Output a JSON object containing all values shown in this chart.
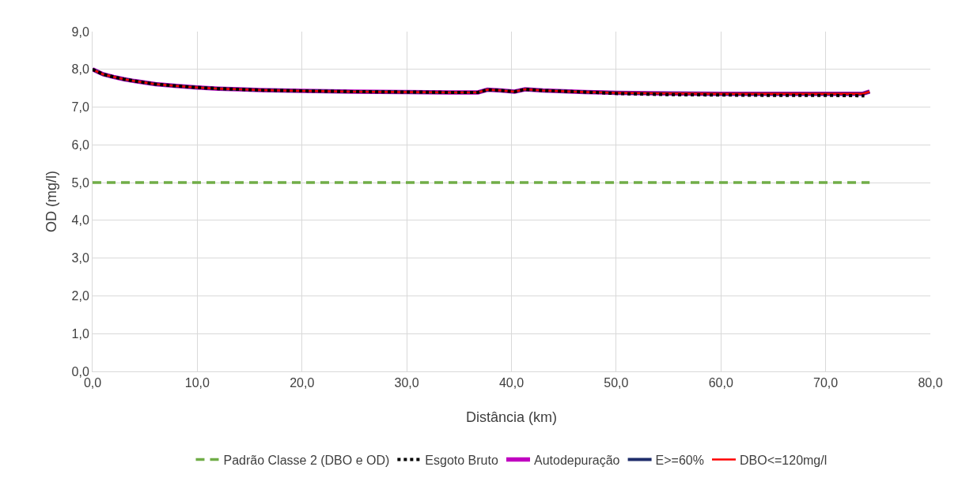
{
  "chart_data": {
    "type": "line",
    "xlabel": "Distância (km)",
    "ylabel": "OD (mg/l)",
    "xlim": [
      0,
      80
    ],
    "ylim": [
      0,
      9
    ],
    "xticks": [
      {
        "value": 0,
        "label": "0,0"
      },
      {
        "value": 10,
        "label": "10,0"
      },
      {
        "value": 20,
        "label": "20,0"
      },
      {
        "value": 30,
        "label": "30,0"
      },
      {
        "value": 40,
        "label": "40,0"
      },
      {
        "value": 50,
        "label": "50,0"
      },
      {
        "value": 60,
        "label": "60,0"
      },
      {
        "value": 70,
        "label": "70,0"
      },
      {
        "value": 80,
        "label": "80,0"
      }
    ],
    "yticks": [
      {
        "value": 0,
        "label": "0,0"
      },
      {
        "value": 1,
        "label": "1,0"
      },
      {
        "value": 2,
        "label": "2,0"
      },
      {
        "value": 3,
        "label": "3,0"
      },
      {
        "value": 4,
        "label": "4,0"
      },
      {
        "value": 5,
        "label": "5,0"
      },
      {
        "value": 6,
        "label": "6,0"
      },
      {
        "value": 7,
        "label": "7,0"
      },
      {
        "value": 8,
        "label": "8,0"
      },
      {
        "value": 9,
        "label": "9,0"
      }
    ],
    "grid": true,
    "legend": "bottom",
    "marker": "none",
    "series": [
      {
        "name": "Padrão Classe 2 (DBO e OD)",
        "color": "#70ad47",
        "line_style": "dashed",
        "x": [
          0,
          74.2
        ],
        "values": [
          5,
          5
        ]
      },
      {
        "name": "Esgoto Bruto",
        "color": "#000000",
        "line_style": "dotted",
        "x": [
          0,
          1,
          2,
          3,
          4,
          5,
          6,
          8,
          10,
          12,
          14,
          16,
          18,
          20,
          25,
          30,
          34,
          36.8,
          37.7,
          39,
          40.3,
          41.3,
          43,
          45,
          47,
          50,
          55,
          60,
          65,
          70,
          73.7
        ],
        "values": [
          8.0,
          7.87,
          7.8,
          7.74,
          7.69,
          7.65,
          7.61,
          7.56,
          7.52,
          7.49,
          7.47,
          7.45,
          7.44,
          7.43,
          7.41,
          7.4,
          7.39,
          7.39,
          7.46,
          7.44,
          7.41,
          7.47,
          7.44,
          7.42,
          7.4,
          7.36,
          7.33,
          7.32,
          7.31,
          7.31,
          7.3
        ]
      },
      {
        "name": "Autodepuração",
        "color": "#c000c0",
        "line_style": "solid",
        "x": [
          0,
          1,
          2,
          3,
          4,
          5,
          6,
          8,
          10,
          12,
          14,
          16,
          18,
          20,
          25,
          30,
          34,
          36.8,
          37.7,
          39,
          40.3,
          41.3,
          43,
          45,
          47,
          50,
          55,
          60,
          65,
          70,
          73.5,
          74.2
        ],
        "values": [
          8.0,
          7.87,
          7.8,
          7.74,
          7.69,
          7.65,
          7.61,
          7.56,
          7.52,
          7.49,
          7.47,
          7.45,
          7.44,
          7.43,
          7.41,
          7.4,
          7.39,
          7.39,
          7.46,
          7.44,
          7.41,
          7.47,
          7.44,
          7.42,
          7.4,
          7.38,
          7.36,
          7.35,
          7.35,
          7.35,
          7.35,
          7.41
        ]
      },
      {
        "name": "E>=60%",
        "color": "#1f2d6b",
        "line_style": "solid",
        "x": [
          0,
          1,
          2,
          3,
          4,
          5,
          6,
          8,
          10,
          12,
          14,
          16,
          18,
          20,
          25,
          30,
          34,
          36.8,
          37.7,
          39,
          40.3,
          41.3,
          43,
          45,
          47,
          50,
          55,
          60,
          65,
          70,
          73.5,
          74.2
        ],
        "values": [
          8.0,
          7.87,
          7.8,
          7.74,
          7.69,
          7.65,
          7.61,
          7.56,
          7.52,
          7.49,
          7.47,
          7.45,
          7.44,
          7.43,
          7.41,
          7.4,
          7.39,
          7.39,
          7.46,
          7.44,
          7.41,
          7.47,
          7.44,
          7.42,
          7.4,
          7.38,
          7.36,
          7.35,
          7.35,
          7.35,
          7.35,
          7.41
        ]
      },
      {
        "name": "DBO<=120mg/l",
        "color": "#ff0000",
        "line_style": "solid",
        "x": [
          0,
          1,
          2,
          3,
          4,
          5,
          6,
          8,
          10,
          12,
          14,
          16,
          18,
          20,
          25,
          30,
          34,
          36.8,
          37.7,
          39,
          40.3,
          41.3,
          43,
          45,
          47,
          50,
          55,
          60,
          65,
          70,
          73.5,
          74.2
        ],
        "values": [
          8.0,
          7.87,
          7.8,
          7.74,
          7.69,
          7.65,
          7.61,
          7.56,
          7.52,
          7.49,
          7.47,
          7.45,
          7.44,
          7.43,
          7.41,
          7.4,
          7.39,
          7.39,
          7.46,
          7.44,
          7.41,
          7.47,
          7.44,
          7.42,
          7.4,
          7.38,
          7.36,
          7.35,
          7.35,
          7.35,
          7.35,
          7.41
        ]
      }
    ]
  }
}
